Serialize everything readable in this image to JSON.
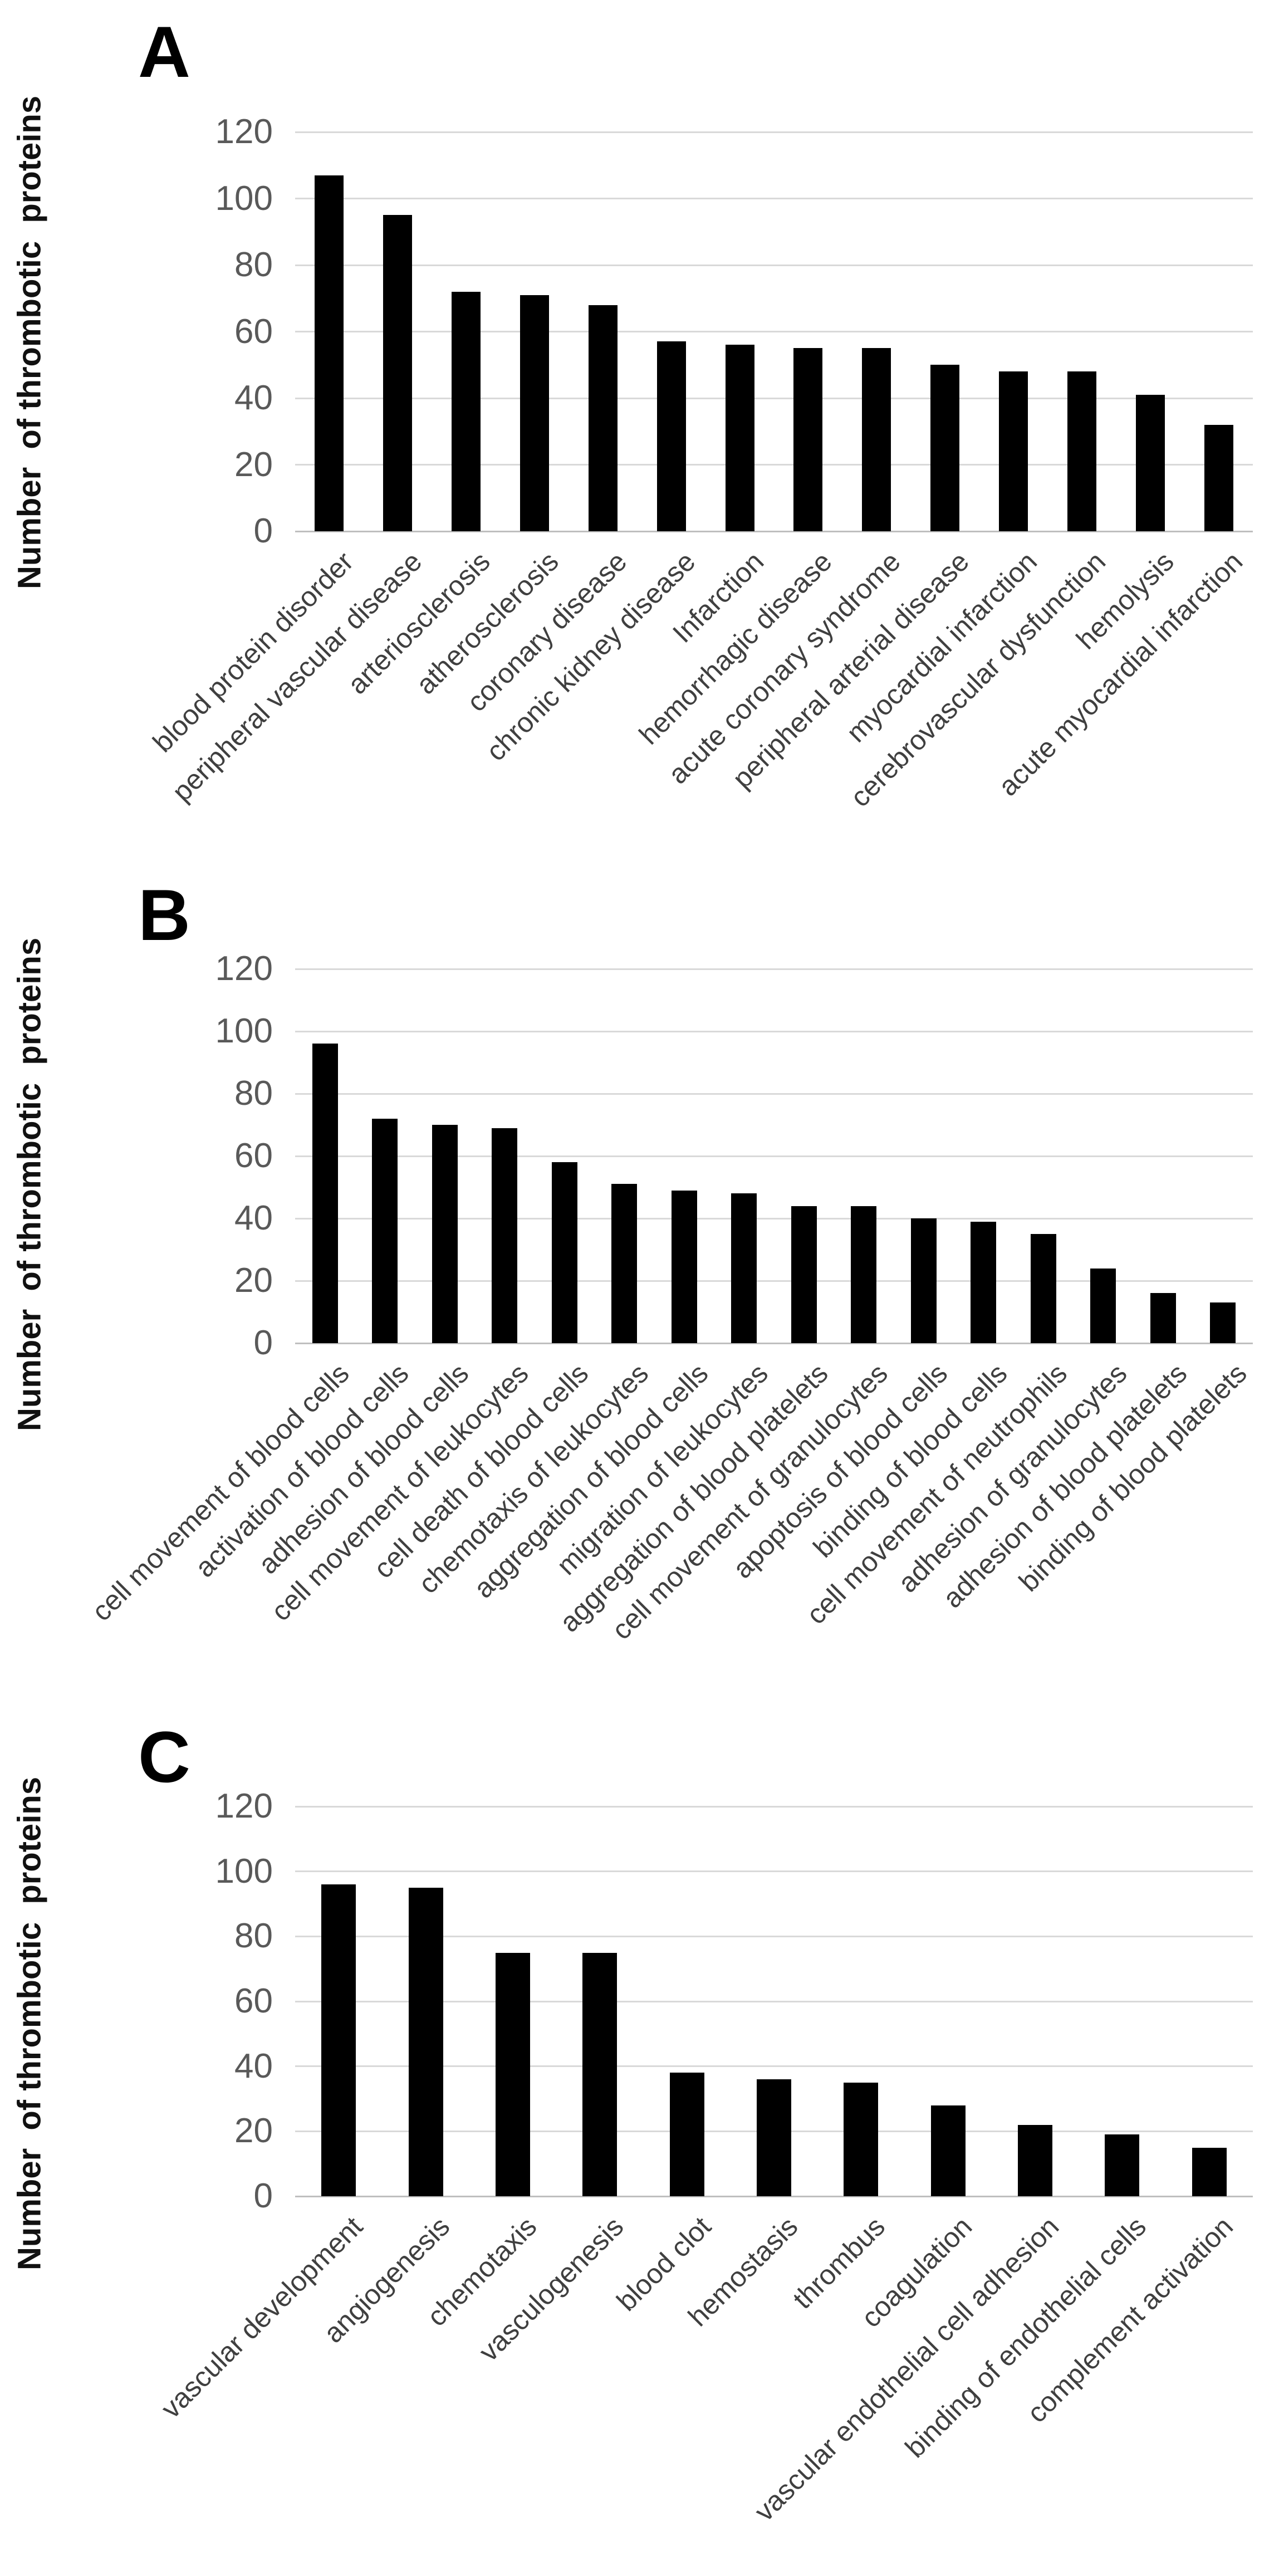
{
  "figure": {
    "background": "#ffffff",
    "bar_color": "#000000",
    "gridline_color": "#d9d9d9",
    "tick_label_color": "#595959",
    "category_label_color": "#3f3f3f"
  },
  "chart_data": [
    {
      "type": "bar",
      "panel_label": "A",
      "title": "",
      "xlabel": "",
      "ylabel": "Number  of thrombotic  proteins",
      "ylim": [
        0,
        120
      ],
      "yticks": [
        0,
        20,
        40,
        60,
        80,
        100,
        120
      ],
      "grid": "horizontal",
      "legend": "none",
      "categories": [
        "blood protein disorder",
        "peripheral vascular disease",
        "arteriosclerosis",
        "atherosclerosis",
        "coronary disease",
        "chronic kidney disease",
        "Infarction",
        "hemorrhagic disease",
        "acute coronary syndrome",
        "peripheral arterial disease",
        "myocardial infarction",
        "cerebrovascular dysfunction",
        "hemolysis",
        "acute myocardial infarction"
      ],
      "values": [
        107,
        95,
        72,
        71,
        68,
        57,
        56,
        55,
        55,
        50,
        48,
        48,
        41,
        32
      ]
    },
    {
      "type": "bar",
      "panel_label": "B",
      "title": "",
      "xlabel": "",
      "ylabel": "Number  of thrombotic  proteins",
      "ylim": [
        0,
        120
      ],
      "yticks": [
        0,
        20,
        40,
        60,
        80,
        100,
        120
      ],
      "grid": "horizontal",
      "legend": "none",
      "categories": [
        "cell movement  of blood cells",
        "activation of blood cells",
        "adhesion of blood cells",
        "cell movement  of leukocytes",
        "cell death  of blood cells",
        "chemotaxis  of leukocytes",
        "aggregation   of blood cells",
        "migration  of leukocytes",
        "aggregation  of blood platelets",
        "cell movement  of granulocytes",
        "apoptosis of blood cells",
        "binding of blood cells",
        "cell movement  of neutrophils",
        "adhesion  of granulocytes",
        "adhesion of blood platelets",
        "binding of blood platelets"
      ],
      "values": [
        96,
        72,
        70,
        69,
        58,
        51,
        49,
        48,
        44,
        44,
        40,
        39,
        35,
        24,
        16,
        13
      ]
    },
    {
      "type": "bar",
      "panel_label": "C",
      "title": "",
      "xlabel": "",
      "ylabel": "Number  of thrombotic  proteins",
      "ylim": [
        0,
        120
      ],
      "yticks": [
        0,
        20,
        40,
        60,
        80,
        100,
        120
      ],
      "grid": "horizontal",
      "legend": "none",
      "categories": [
        "vascular development",
        "angiogenesis",
        "chemotaxis",
        "vasculogenesis",
        "blood clot",
        "hemostasis",
        "thrombus",
        "coagulation",
        "vascular endothelial  cell adhesion",
        "binding of endothelial  cells",
        "complement  activation"
      ],
      "values": [
        96,
        95,
        75,
        75,
        38,
        36,
        35,
        28,
        22,
        19,
        15
      ]
    }
  ]
}
